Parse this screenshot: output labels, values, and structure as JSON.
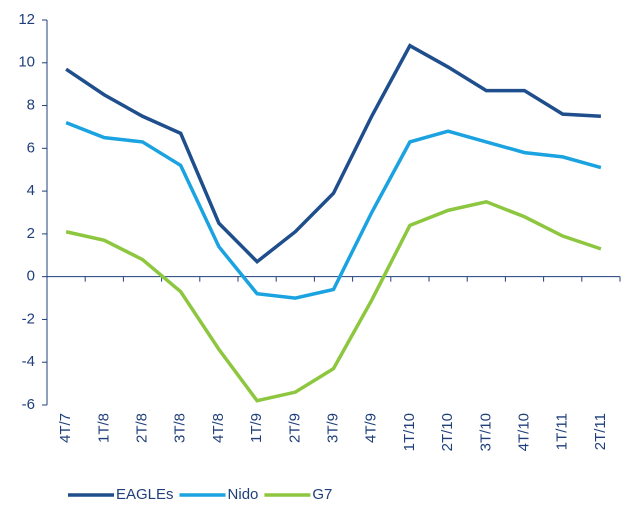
{
  "chart_data": {
    "type": "line",
    "categories": [
      "4T/7",
      "1T/8",
      "2T/8",
      "3T/8",
      "4T/8",
      "1T/9",
      "2T/9",
      "3T/9",
      "4T/9",
      "1T/10",
      "2T/10",
      "3T/10",
      "4T/10",
      "1T/11",
      "2T/11"
    ],
    "series": [
      {
        "name": "EAGLEs",
        "color": "#1f4e8c",
        "values": [
          9.7,
          8.5,
          7.5,
          6.7,
          2.5,
          0.7,
          2.1,
          3.9,
          7.5,
          10.8,
          9.8,
          8.7,
          8.7,
          7.6,
          7.5
        ]
      },
      {
        "name": "Nido",
        "color": "#1aa3e0",
        "values": [
          7.2,
          6.5,
          6.3,
          5.2,
          1.4,
          -0.8,
          -1.0,
          -0.6,
          3.0,
          6.3,
          6.8,
          6.3,
          5.8,
          5.6,
          5.1
        ]
      },
      {
        "name": "G7",
        "color": "#8dc63f",
        "values": [
          2.1,
          1.7,
          0.8,
          -0.7,
          -3.4,
          -5.8,
          -5.4,
          -4.3,
          -1.1,
          2.4,
          3.1,
          3.5,
          2.8,
          1.9,
          1.3
        ]
      }
    ],
    "ylim": [
      -6,
      12
    ],
    "yticks": [
      -6,
      -4,
      -2,
      0,
      2,
      4,
      6,
      8,
      10,
      12
    ],
    "grid": false,
    "legend": "bottom"
  }
}
